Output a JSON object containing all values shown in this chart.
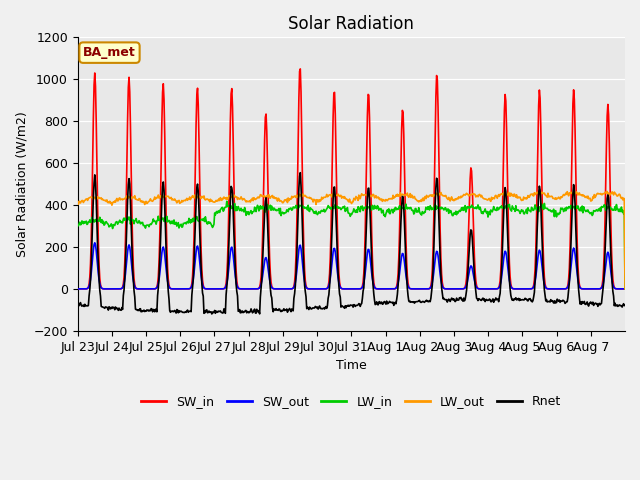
{
  "title": "Solar Radiation",
  "ylabel": "Solar Radiation (W/m2)",
  "xlabel": "Time",
  "ylim": [
    -200,
    1200
  ],
  "annotation_text": "BA_met",
  "xtick_labels": [
    "Jul 23",
    "Jul 24",
    "Jul 25",
    "Jul 26",
    "Jul 27",
    "Jul 28",
    "Jul 29",
    "Jul 30",
    "Jul 31",
    "Aug 1",
    "Aug 2",
    "Aug 3",
    "Aug 4",
    "Aug 5",
    "Aug 6",
    "Aug 7"
  ],
  "series": {
    "SW_in": {
      "color": "#ff0000",
      "lw": 1.2
    },
    "SW_out": {
      "color": "#0000ff",
      "lw": 1.2
    },
    "LW_in": {
      "color": "#00cc00",
      "lw": 1.2
    },
    "LW_out": {
      "color": "#ff9900",
      "lw": 1.2
    },
    "Rnet": {
      "color": "#000000",
      "lw": 1.2
    }
  },
  "bg_color": "#e8e8e8",
  "fig_bg_color": "#f0f0f0",
  "grid_color": "#ffffff",
  "sw_in_peaks": [
    1030,
    1010,
    980,
    960,
    960,
    840,
    1060,
    950,
    940,
    860,
    1025,
    580,
    930,
    950,
    950,
    880
  ],
  "sw_out_peaks": [
    220,
    210,
    200,
    205,
    200,
    150,
    210,
    195,
    190,
    170,
    180,
    110,
    180,
    185,
    195,
    175
  ]
}
